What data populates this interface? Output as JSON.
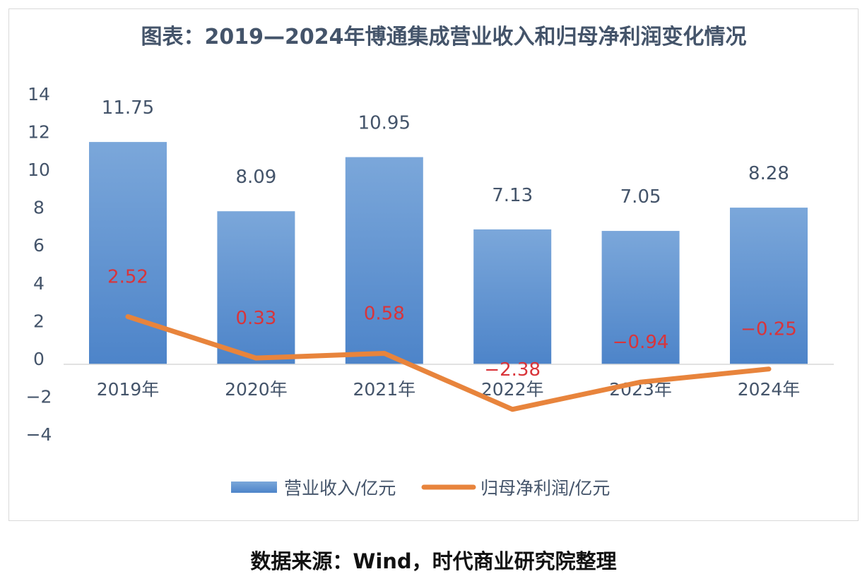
{
  "chart_data": {
    "type": "bar+line",
    "title": "图表：2019—2024年博通集成营业收入和归母净利润变化情况",
    "categories": [
      "2019年",
      "2020年",
      "2021年",
      "2022年",
      "2023年",
      "2024年"
    ],
    "series": [
      {
        "name": "营业收入/亿元",
        "type": "bar",
        "color": "#5b8fd0",
        "values": [
          11.75,
          8.09,
          10.95,
          7.13,
          7.05,
          8.28
        ]
      },
      {
        "name": "归母净利润/亿元",
        "type": "line",
        "color": "#e8843c",
        "label_color": "#d9343a",
        "values": [
          2.52,
          0.33,
          0.58,
          -2.38,
          -0.94,
          -0.25
        ]
      }
    ],
    "ylim": [
      -4,
      14
    ],
    "yticks": [
      14,
      12,
      10,
      8,
      6,
      4,
      2,
      0,
      -2,
      -4
    ],
    "grid": false,
    "legend": "bottom"
  },
  "source": "数据来源：Wind，时代商业研究院整理"
}
